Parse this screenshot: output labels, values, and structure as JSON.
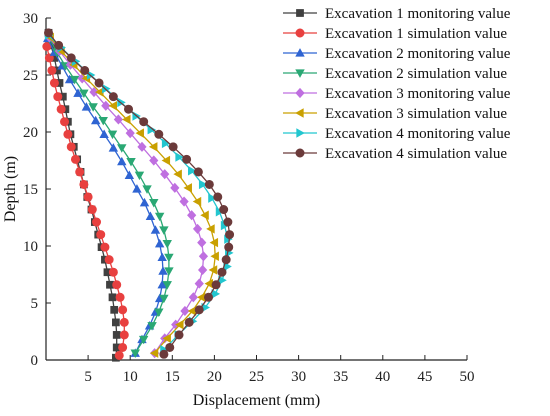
{
  "chart_data": {
    "type": "line",
    "xlabel": "Displacement (mm)",
    "ylabel": "Depth (m)",
    "xlim": [
      0,
      50
    ],
    "ylim": [
      0,
      30
    ],
    "xticks": [
      5,
      10,
      15,
      20,
      25,
      30,
      35,
      40,
      45,
      50
    ],
    "yticks": [
      0,
      5,
      10,
      15,
      20,
      25,
      30
    ],
    "grid": false,
    "legend_position": "top-right",
    "series": [
      {
        "name": "Excavation 1 monitoring value",
        "color": "#404040",
        "marker": "square",
        "points": [
          [
            0.3,
            28.7
          ],
          [
            0.6,
            27.6
          ],
          [
            1.0,
            26.5
          ],
          [
            1.3,
            25.4
          ],
          [
            1.6,
            24.3
          ],
          [
            2.0,
            23.1
          ],
          [
            2.3,
            22.0
          ],
          [
            2.6,
            20.9
          ],
          [
            2.9,
            19.8
          ],
          [
            3.3,
            18.7
          ],
          [
            3.7,
            17.6
          ],
          [
            4.1,
            16.5
          ],
          [
            4.5,
            15.4
          ],
          [
            4.9,
            14.3
          ],
          [
            5.4,
            13.2
          ],
          [
            5.8,
            12.1
          ],
          [
            6.2,
            11.0
          ],
          [
            6.6,
            9.9
          ],
          [
            7.0,
            8.8
          ],
          [
            7.3,
            7.7
          ],
          [
            7.6,
            6.6
          ],
          [
            7.9,
            5.5
          ],
          [
            8.1,
            4.4
          ],
          [
            8.3,
            3.3
          ],
          [
            8.4,
            2.2
          ],
          [
            8.4,
            1.1
          ],
          [
            8.3,
            0.2
          ]
        ]
      },
      {
        "name": "Excavation 1 simulation value",
        "color": "#e8403f",
        "marker": "circle",
        "points": [
          [
            0.1,
            27.5
          ],
          [
            0.4,
            26.5
          ],
          [
            0.7,
            25.4
          ],
          [
            1.0,
            24.3
          ],
          [
            1.4,
            23.1
          ],
          [
            1.8,
            22.0
          ],
          [
            2.2,
            20.9
          ],
          [
            2.6,
            19.8
          ],
          [
            3.0,
            18.7
          ],
          [
            3.5,
            17.6
          ],
          [
            4.0,
            16.5
          ],
          [
            4.5,
            15.4
          ],
          [
            5.0,
            14.3
          ],
          [
            5.5,
            13.2
          ],
          [
            6.0,
            12.1
          ],
          [
            6.5,
            11.0
          ],
          [
            7.0,
            9.9
          ],
          [
            7.5,
            8.8
          ],
          [
            8.0,
            7.7
          ],
          [
            8.4,
            6.6
          ],
          [
            8.8,
            5.5
          ],
          [
            9.1,
            4.4
          ],
          [
            9.3,
            3.3
          ],
          [
            9.3,
            2.2
          ],
          [
            9.1,
            1.1
          ],
          [
            8.7,
            0.4
          ]
        ]
      },
      {
        "name": "Excavation 2 monitoring value",
        "color": "#2f64d2",
        "marker": "triangle-up",
        "points": [
          [
            0.2,
            28.2
          ],
          [
            1.0,
            27.0
          ],
          [
            1.9,
            25.8
          ],
          [
            2.8,
            24.6
          ],
          [
            3.8,
            23.4
          ],
          [
            4.8,
            22.2
          ],
          [
            5.9,
            21.0
          ],
          [
            6.9,
            19.8
          ],
          [
            8.0,
            18.6
          ],
          [
            9.0,
            17.4
          ],
          [
            9.9,
            16.2
          ],
          [
            10.8,
            15.0
          ],
          [
            11.7,
            13.8
          ],
          [
            12.4,
            12.6
          ],
          [
            13.0,
            11.4
          ],
          [
            13.5,
            10.2
          ],
          [
            13.8,
            9.0
          ],
          [
            13.9,
            7.8
          ],
          [
            13.8,
            6.6
          ],
          [
            13.5,
            5.4
          ],
          [
            13.0,
            4.2
          ],
          [
            12.3,
            3.0
          ],
          [
            11.4,
            1.8
          ],
          [
            10.6,
            0.6
          ]
        ]
      },
      {
        "name": "Excavation 2 simulation value",
        "color": "#2aa874",
        "marker": "triangle-down",
        "points": [
          [
            0.4,
            28.2
          ],
          [
            1.3,
            27.0
          ],
          [
            2.3,
            25.8
          ],
          [
            3.4,
            24.6
          ],
          [
            4.5,
            23.4
          ],
          [
            5.6,
            22.2
          ],
          [
            6.8,
            21.0
          ],
          [
            7.9,
            19.8
          ],
          [
            9.0,
            18.6
          ],
          [
            10.1,
            17.4
          ],
          [
            11.1,
            16.2
          ],
          [
            12.0,
            15.0
          ],
          [
            12.8,
            13.8
          ],
          [
            13.5,
            12.6
          ],
          [
            14.0,
            11.4
          ],
          [
            14.4,
            10.2
          ],
          [
            14.6,
            9.0
          ],
          [
            14.6,
            7.8
          ],
          [
            14.4,
            6.6
          ],
          [
            14.0,
            5.4
          ],
          [
            13.4,
            4.2
          ],
          [
            12.6,
            3.0
          ],
          [
            11.6,
            1.8
          ],
          [
            10.6,
            0.6
          ]
        ]
      },
      {
        "name": "Excavation 3 monitoring value",
        "color": "#bf6fe0",
        "marker": "diamond",
        "points": [
          [
            0.4,
            28.3
          ],
          [
            1.6,
            27.1
          ],
          [
            2.9,
            25.9
          ],
          [
            4.3,
            24.7
          ],
          [
            5.7,
            23.5
          ],
          [
            7.1,
            22.3
          ],
          [
            8.6,
            21.1
          ],
          [
            10.0,
            19.9
          ],
          [
            11.4,
            18.7
          ],
          [
            12.8,
            17.5
          ],
          [
            14.1,
            16.3
          ],
          [
            15.3,
            15.1
          ],
          [
            16.4,
            13.9
          ],
          [
            17.3,
            12.7
          ],
          [
            18.0,
            11.5
          ],
          [
            18.5,
            10.3
          ],
          [
            18.7,
            9.1
          ],
          [
            18.6,
            7.9
          ],
          [
            18.2,
            6.7
          ],
          [
            17.5,
            5.5
          ],
          [
            16.5,
            4.3
          ],
          [
            15.4,
            3.1
          ],
          [
            14.1,
            1.9
          ],
          [
            12.9,
            0.6
          ]
        ]
      },
      {
        "name": "Excavation 3 simulation value",
        "color": "#c9a000",
        "marker": "triangle-left",
        "points": [
          [
            0.5,
            28.3
          ],
          [
            1.8,
            27.1
          ],
          [
            3.3,
            25.9
          ],
          [
            4.8,
            24.7
          ],
          [
            6.4,
            23.5
          ],
          [
            8.0,
            22.3
          ],
          [
            9.6,
            21.1
          ],
          [
            11.2,
            19.9
          ],
          [
            12.8,
            18.7
          ],
          [
            14.3,
            17.5
          ],
          [
            15.7,
            16.3
          ],
          [
            16.9,
            15.1
          ],
          [
            18.0,
            13.9
          ],
          [
            18.9,
            12.7
          ],
          [
            19.6,
            11.5
          ],
          [
            20.0,
            10.3
          ],
          [
            20.1,
            9.1
          ],
          [
            19.9,
            7.9
          ],
          [
            19.4,
            6.7
          ],
          [
            18.5,
            5.5
          ],
          [
            17.4,
            4.3
          ],
          [
            15.9,
            3.1
          ],
          [
            14.4,
            1.9
          ],
          [
            12.9,
            0.6
          ]
        ]
      },
      {
        "name": "Excavation 4 monitoring value",
        "color": "#22c6cf",
        "marker": "triangle-right",
        "points": [
          [
            0.3,
            28.5
          ],
          [
            1.8,
            27.4
          ],
          [
            3.5,
            26.2
          ],
          [
            5.3,
            25.0
          ],
          [
            7.1,
            23.8
          ],
          [
            8.9,
            22.6
          ],
          [
            10.7,
            21.4
          ],
          [
            12.5,
            20.2
          ],
          [
            14.2,
            19.0
          ],
          [
            15.8,
            17.8
          ],
          [
            17.3,
            16.6
          ],
          [
            18.6,
            15.4
          ],
          [
            19.7,
            14.2
          ],
          [
            20.6,
            13.0
          ],
          [
            21.2,
            11.8
          ],
          [
            21.6,
            10.6
          ],
          [
            21.7,
            9.4
          ],
          [
            21.5,
            8.2
          ],
          [
            20.9,
            7.0
          ],
          [
            20.1,
            5.8
          ],
          [
            18.9,
            4.6
          ],
          [
            17.4,
            3.4
          ],
          [
            15.7,
            2.2
          ],
          [
            14.0,
            0.9
          ]
        ]
      },
      {
        "name": "Excavation 4 simulation value",
        "color": "#6b3a3a",
        "marker": "circle",
        "points": [
          [
            0.3,
            28.7
          ],
          [
            1.5,
            27.6
          ],
          [
            3.0,
            26.5
          ],
          [
            4.6,
            25.4
          ],
          [
            6.3,
            24.3
          ],
          [
            8.0,
            23.1
          ],
          [
            9.8,
            22.0
          ],
          [
            11.6,
            20.9
          ],
          [
            13.4,
            19.8
          ],
          [
            15.1,
            18.7
          ],
          [
            16.7,
            17.6
          ],
          [
            18.1,
            16.5
          ],
          [
            19.4,
            15.4
          ],
          [
            20.4,
            14.3
          ],
          [
            21.1,
            13.2
          ],
          [
            21.6,
            12.1
          ],
          [
            21.8,
            11.0
          ],
          [
            21.7,
            9.9
          ],
          [
            21.4,
            8.8
          ],
          [
            20.9,
            7.7
          ],
          [
            20.2,
            6.6
          ],
          [
            19.3,
            5.5
          ],
          [
            18.2,
            4.4
          ],
          [
            17.0,
            3.3
          ],
          [
            15.8,
            2.2
          ],
          [
            14.7,
            1.1
          ],
          [
            14.0,
            0.5
          ]
        ]
      }
    ]
  }
}
